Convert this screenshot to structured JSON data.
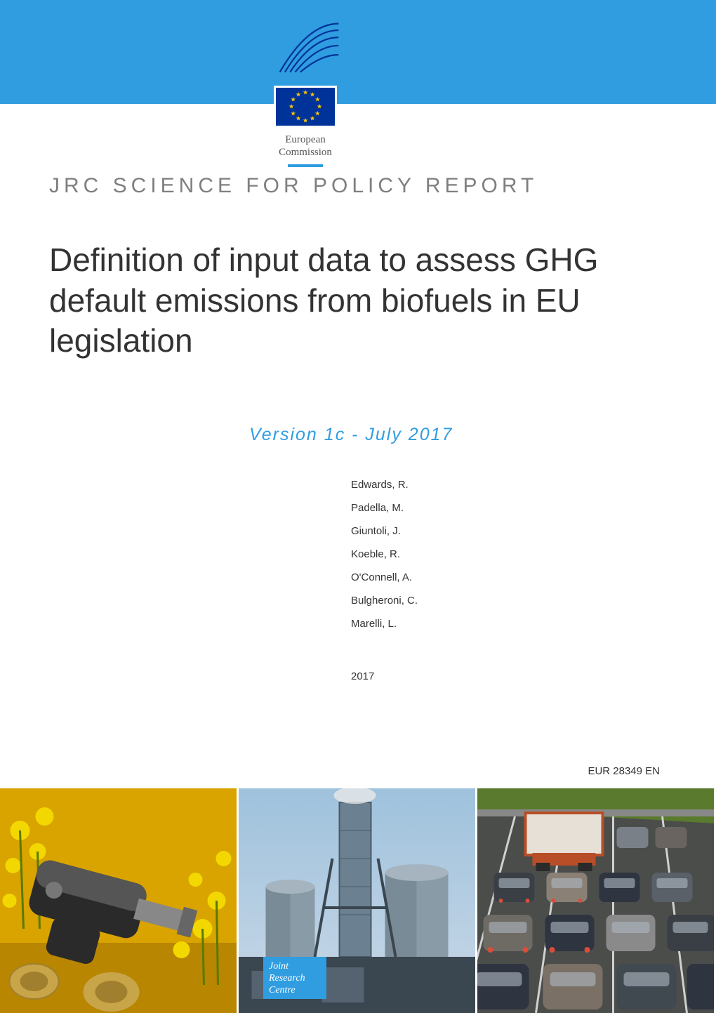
{
  "colors": {
    "header_bg": "#2f9de0",
    "accent": "#2f9de0",
    "grey_label": "#7f7f7f",
    "text": "#333333",
    "eu_blue": "#003399",
    "eu_gold": "#ffcc00",
    "white": "#ffffff",
    "panel1_bg": "#d9a300",
    "panel1_flower": "#f2d800",
    "panel1_nozzle": "#555555",
    "panel2_sky1": "#9fc2dd",
    "panel2_sky2": "#c9d8e6",
    "panel2_plant": "#628294",
    "panel2_dark": "#3a4650",
    "panel3_road": "#4a4d4a",
    "panel3_grass": "#5a7a2e",
    "panel3_truck": "#b84e27",
    "panel3_car": "#2e3440"
  },
  "typography": {
    "report_label_fontsize": 30,
    "report_label_letterspacing": 6,
    "title_fontsize": 46,
    "version_fontsize": 25,
    "body_fontsize": 15
  },
  "logo": {
    "line1": "European",
    "line2": "Commission"
  },
  "report_label": "JRC SCIENCE FOR POLICY REPORT",
  "title": "Definition of input data to assess GHG default emissions from biofuels in EU legislation",
  "version": "Version 1c - July 2017",
  "authors": [
    "Edwards, R.",
    "Padella, M.",
    "Giuntoli, J.",
    "Koeble, R.",
    "O'Connell, A.",
    "Bulgheroni, C.",
    "Marelli, L."
  ],
  "year": "2017",
  "document_id": "EUR 28349 EN",
  "jrc_badge": {
    "line1": "Joint",
    "line2": "Research",
    "line3": "Centre"
  },
  "image_panels": [
    {
      "name": "rapeseed-fuel-nozzle"
    },
    {
      "name": "industrial-plant"
    },
    {
      "name": "highway-traffic"
    }
  ]
}
